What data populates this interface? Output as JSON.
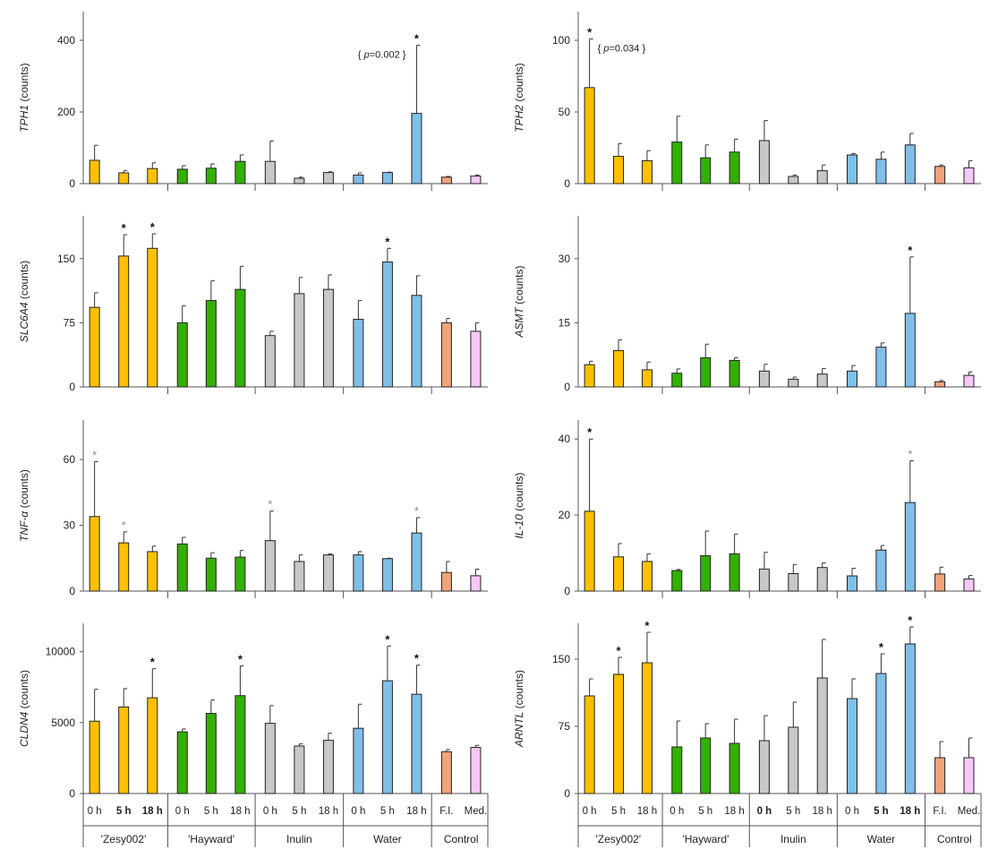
{
  "figure": {
    "colors": {
      "zesy": "#FFC000",
      "hayward": "#33B000",
      "inulin": "#C8C8C8",
      "water": "#7FBFE8",
      "fi": "#F4A27A",
      "med": "#F7C8F7",
      "stroke": "#222222",
      "sig_gray": "#888888"
    },
    "x_tick_labels": [
      "0 h",
      "5 h",
      "18 h",
      "0 h",
      "5 h",
      "18 h",
      "0 h",
      "5 h",
      "18 h",
      "0 h",
      "5 h",
      "18 h",
      "F.I.",
      "Med."
    ],
    "group_labels": [
      "'Zesy002'",
      "'Hayward'",
      "Inulin",
      "Water",
      "Control"
    ],
    "group_ranges": [
      [
        0,
        2
      ],
      [
        3,
        5
      ],
      [
        6,
        8
      ],
      [
        9,
        11
      ],
      [
        12,
        13
      ]
    ],
    "bar_colors": [
      "zesy",
      "zesy",
      "zesy",
      "hayward",
      "hayward",
      "hayward",
      "inulin",
      "inulin",
      "inulin",
      "water",
      "water",
      "water",
      "fi",
      "med"
    ]
  },
  "chart_data": [
    {
      "type": "bar",
      "id": "tph1",
      "gene": "TPH1",
      "unit": " (counts)",
      "ylim": [
        0,
        480
      ],
      "yticks": [
        0,
        200,
        400
      ],
      "values": [
        65,
        30,
        42,
        40,
        43,
        62,
        62,
        15,
        31,
        24,
        31,
        196,
        18,
        21
      ],
      "errors": [
        42,
        6,
        16,
        10,
        12,
        18,
        57,
        3,
        2,
        6,
        1,
        190,
        2,
        3
      ],
      "sig": [
        "",
        "",
        "",
        "",
        "",
        "",
        "",
        "",
        "",
        "",
        "",
        "*",
        "",
        ""
      ],
      "annotation": {
        "bar": 11,
        "prefix": "{ ",
        "p": "p",
        "text": "=0.002 }"
      }
    },
    {
      "type": "bar",
      "id": "tph2",
      "gene": "TPH2",
      "unit": " (counts)",
      "ylim": [
        0,
        120
      ],
      "yticks": [
        0,
        50,
        100
      ],
      "values": [
        67,
        19,
        16,
        29,
        18,
        22,
        30,
        5,
        9,
        20,
        17,
        27,
        12,
        11
      ],
      "errors": [
        34,
        9,
        7,
        18,
        9,
        9,
        14,
        1,
        4,
        1,
        5,
        8,
        1,
        5
      ],
      "sig": [
        "*",
        "",
        "",
        "",
        "",
        "",
        "",
        "",
        "",
        "",
        "",
        "",
        "",
        ""
      ],
      "annotation": {
        "bar": 0,
        "prefix": "{ ",
        "p": "p",
        "text": "=0.034 }"
      }
    },
    {
      "type": "bar",
      "id": "slc6a4",
      "gene": "SLC6A4",
      "unit": " (counts)",
      "ylim": [
        0,
        200
      ],
      "yticks": [
        0,
        75,
        150
      ],
      "values": [
        93,
        153,
        162,
        75,
        101,
        114,
        60,
        109,
        114,
        79,
        146,
        107,
        75,
        65
      ],
      "errors": [
        17,
        25,
        17,
        20,
        23,
        27,
        5,
        19,
        17,
        22,
        16,
        23,
        5,
        10
      ],
      "sig": [
        "",
        "*",
        "*",
        "",
        "",
        "",
        "",
        "",
        "",
        "",
        "*",
        "",
        "",
        ""
      ]
    },
    {
      "type": "bar",
      "id": "asmt",
      "gene": "ASMT",
      "unit": " (counts)",
      "ylim": [
        0,
        40
      ],
      "yticks": [
        0,
        15,
        30
      ],
      "values": [
        5.2,
        8.5,
        4.0,
        3.2,
        6.8,
        6.2,
        3.7,
        1.8,
        3.0,
        3.7,
        9.3,
        17.2,
        1.2,
        2.7
      ],
      "errors": [
        0.8,
        2.5,
        1.8,
        1.0,
        3.2,
        0.6,
        1.6,
        0.5,
        1.3,
        1.3,
        1.0,
        13.2,
        0.3,
        0.8
      ],
      "sig": [
        "",
        "",
        "",
        "",
        "",
        "",
        "",
        "",
        "",
        "",
        "",
        "*",
        "",
        ""
      ]
    },
    {
      "type": "bar",
      "id": "tnfa",
      "gene": "TNF-α",
      "unit": " (counts)",
      "ylim": [
        0,
        78
      ],
      "yticks": [
        0,
        30,
        60
      ],
      "values": [
        34,
        22,
        18,
        21.5,
        15,
        15.5,
        23,
        13.5,
        16.5,
        16.5,
        14.8,
        26.5,
        8.5,
        7
      ],
      "errors": [
        25,
        5,
        2.5,
        3,
        2.5,
        3,
        13.5,
        3,
        0.5,
        1.5,
        0.2,
        7,
        5,
        3
      ],
      "sig": [
        "*",
        "*",
        "",
        "",
        "",
        "",
        "*",
        "",
        "",
        "",
        "",
        "*",
        "",
        ""
      ],
      "sig_gray": [
        0,
        1,
        6,
        11
      ]
    },
    {
      "type": "bar",
      "id": "il10",
      "gene": "IL-10",
      "unit": " (counts)",
      "ylim": [
        0,
        45
      ],
      "yticks": [
        0,
        20,
        40
      ],
      "values": [
        21,
        9,
        7.8,
        5.4,
        9.3,
        9.8,
        5.8,
        4.6,
        6.2,
        4,
        10.8,
        23.3,
        4.5,
        3.2
      ],
      "errors": [
        19,
        3.5,
        2,
        0.3,
        6.5,
        5.2,
        4.4,
        2.4,
        1.2,
        2,
        1.2,
        11,
        1.8,
        0.9
      ],
      "sig": [
        "*",
        "",
        "",
        "",
        "",
        "",
        "",
        "",
        "",
        "",
        "",
        "*",
        "",
        ""
      ],
      "sig_gray": [
        11
      ]
    },
    {
      "type": "bar",
      "id": "cldn4",
      "gene": "CLDN4",
      "unit": " (counts)",
      "ylim": [
        0,
        12000
      ],
      "yticks": [
        0,
        5000,
        10000
      ],
      "values": [
        5100,
        6100,
        6750,
        4350,
        5650,
        6900,
        4950,
        3350,
        3750,
        4600,
        7950,
        7000,
        2950,
        3250
      ],
      "errors": [
        2250,
        1300,
        2050,
        200,
        950,
        2100,
        1250,
        150,
        500,
        1700,
        2450,
        2050,
        150,
        150
      ],
      "sig": [
        "",
        "",
        "*",
        "",
        "",
        "*",
        "",
        "",
        "",
        "",
        "*",
        "*",
        "",
        ""
      ]
    },
    {
      "type": "bar",
      "id": "arntl",
      "gene": "ARNTL",
      "unit": " (counts)",
      "ylim": [
        0,
        190
      ],
      "yticks": [
        0,
        75,
        150
      ],
      "values": [
        109,
        133,
        146,
        52,
        62,
        56,
        59,
        74,
        129,
        106,
        134,
        167,
        40,
        40
      ],
      "errors": [
        19,
        19,
        34,
        29,
        16,
        27,
        28,
        28,
        43,
        22,
        22,
        19,
        18,
        22
      ],
      "sig": [
        "",
        "*",
        "*",
        "",
        "",
        "",
        "",
        "",
        "",
        "",
        "*",
        "*",
        "",
        ""
      ]
    }
  ]
}
